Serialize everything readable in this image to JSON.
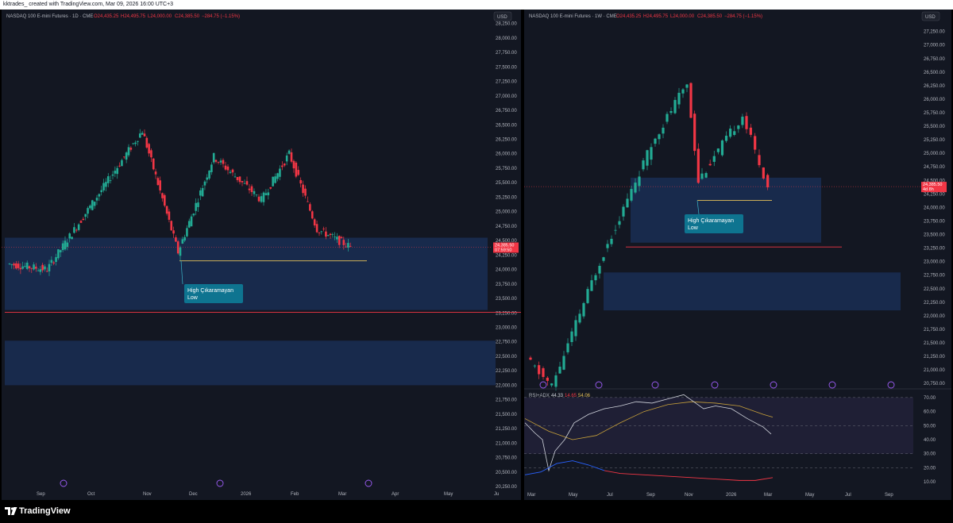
{
  "watermark": "kktrades_ created with TradingView.com, Mar 09, 2026 16:00 UTC+3",
  "brand": "TradingView",
  "colors": {
    "up": "#22ab94",
    "down": "#f23645",
    "zone": "#1e3a70",
    "rsi": "#d1d4dc",
    "rsi_ma": "#c8a13a",
    "adx_plus": "#2962ff",
    "adx_minus": "#f23645",
    "label_bg": "#0e7490"
  },
  "chart_data": [
    {
      "type": "candlestick",
      "symbol": "NASDAQ 100 E-mini Futures · 1D · CME",
      "ohlc_labels": {
        "o": "O24,435.25",
        "h": "H24,495.75",
        "l": "L24,000.00",
        "c": "C24,385.50",
        "chg": "−284.75 (−1.15%)"
      },
      "currency": "USD",
      "last_price": "24,385.50",
      "countdown": "07:59:50",
      "y_ticks": [
        "28,250.00",
        "28,000.00",
        "27,750.00",
        "27,500.00",
        "27,250.00",
        "27,000.00",
        "26,750.00",
        "26,500.00",
        "26,250.00",
        "26,000.00",
        "25,750.00",
        "25,500.00",
        "25,250.00",
        "25,000.00",
        "24,750.00",
        "24,500.00",
        "24,250.00",
        "24,000.00",
        "23,750.00",
        "23,500.00",
        "23,250.00",
        "23,000.00",
        "22,750.00",
        "22,500.00",
        "22,250.00",
        "22,000.00",
        "21,750.00",
        "21,500.00",
        "21,250.00",
        "21,000.00",
        "20,750.00",
        "20,500.00",
        "20,250.00"
      ],
      "ylim": [
        20100,
        28300
      ],
      "x_ticks": [
        "Sep",
        "Oct",
        "Nov",
        "Dec",
        "2026",
        "Feb",
        "Mar",
        "Apr",
        "May",
        "Ju"
      ],
      "zones": [
        [
          23300,
          24550
        ],
        [
          22000,
          22770
        ]
      ],
      "h_lines": [
        {
          "price": 23260,
          "color": "#f23645"
        },
        {
          "price": 24150,
          "color": "#e6c15a"
        }
      ],
      "annotation": {
        "text": [
          "High Çıkaramayan",
          "Low"
        ]
      }
    },
    {
      "type": "candlestick",
      "symbol": "NASDAQ 100 E-mini Futures · 1W · CME",
      "ohlc_labels": {
        "o": "O24,435.25",
        "h": "H24,495.75",
        "l": "L24,000.00",
        "c": "C24,385.50",
        "chg": "−284.75 (−1.15%)"
      },
      "currency": "USD",
      "last_price": "24,385.50",
      "countdown": "4d 8h",
      "y_ticks": [
        "27,250.00",
        "27,000.00",
        "26,750.00",
        "26,500.00",
        "26,250.00",
        "26,000.00",
        "25,750.00",
        "25,500.00",
        "25,250.00",
        "25,000.00",
        "24,750.00",
        "24,500.00",
        "24,250.00",
        "24,000.00",
        "23,750.00",
        "23,500.00",
        "23,250.00",
        "23,000.00",
        "22,750.00",
        "22,500.00",
        "22,250.00",
        "22,000.00",
        "21,750.00",
        "21,500.00",
        "21,250.00",
        "21,000.00",
        "20,750.00"
      ],
      "ylim": [
        20650,
        27450
      ],
      "x_ticks": [
        "Mar",
        "May",
        "Jul",
        "Sep",
        "Nov",
        "2026",
        "Mar",
        "May",
        "Jul",
        "Sep"
      ],
      "zones": [
        [
          23350,
          24550
        ],
        [
          22100,
          22800
        ]
      ],
      "h_lines": [
        {
          "price": 23270,
          "color": "#f23645"
        },
        {
          "price": 24130,
          "color": "#e6c15a"
        }
      ],
      "annotation": {
        "text": [
          "High Çıkaramayan",
          "Low"
        ]
      }
    },
    {
      "type": "line",
      "indicator": "RSI+ADX",
      "values_labels": [
        "44.33",
        "14.65",
        "54.06"
      ],
      "y_ticks": [
        "70.00",
        "60.00",
        "50.00",
        "40.00",
        "30.00",
        "20.00",
        "10.00"
      ],
      "ylim": [
        5,
        75
      ],
      "band": [
        30,
        70
      ]
    }
  ]
}
